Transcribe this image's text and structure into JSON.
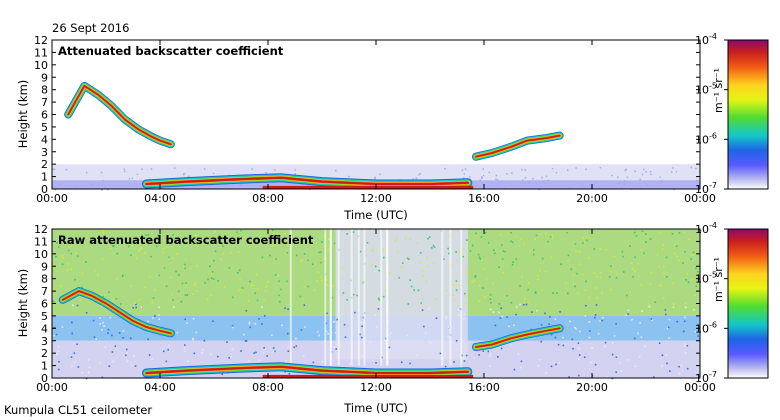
{
  "figure": {
    "date": "26 Sept 2016",
    "footer": "Kumpula CL51 ceilometer"
  },
  "colorbar": {
    "unit": "m⁻¹ sr⁻¹",
    "ticks": [
      {
        "base": "10",
        "exp": "-4"
      },
      {
        "base": "10",
        "exp": "-5"
      },
      {
        "base": "10",
        "exp": "-6"
      },
      {
        "base": "10",
        "exp": "-7"
      }
    ],
    "colors": [
      "#8a0a6e",
      "#c81e1e",
      "#f05a14",
      "#ffd21e",
      "#e6f514",
      "#50dc32",
      "#14c8c8",
      "#1e64e6",
      "#5a5aff",
      "#b4b4f0",
      "#ffffff"
    ]
  },
  "chart_data": [
    {
      "type": "heatmap",
      "title": "Attenuated backscatter coefficient",
      "xlabel": "Time (UTC)",
      "ylabel": "Height (km)",
      "xticks": [
        "00:00",
        "04:00",
        "08:00",
        "12:00",
        "16:00",
        "20:00",
        "00:00"
      ],
      "yticks": [
        "0",
        "1",
        "2",
        "3",
        "4",
        "5",
        "6",
        "7",
        "8",
        "9",
        "10",
        "11",
        "12"
      ],
      "xlim_hours": [
        0,
        24
      ],
      "ylim_km": [
        0,
        12
      ],
      "color_scale": "log",
      "color_range": [
        1e-07,
        0.0001
      ],
      "background": "clean",
      "features": [
        {
          "name": "elevated-cloud-layer",
          "x": [
            0.6,
            1.2,
            1.7,
            2.2,
            2.7,
            3.2,
            3.7,
            4.0,
            4.4
          ],
          "y": [
            6.0,
            8.3,
            7.6,
            6.7,
            5.6,
            4.8,
            4.2,
            3.9,
            3.6
          ]
        },
        {
          "name": "boundary-layer",
          "x": [
            3.5,
            5.0,
            7.0,
            8.5,
            10.0,
            12.0,
            14.0,
            15.4
          ],
          "y": [
            0.4,
            0.6,
            0.8,
            0.9,
            0.6,
            0.4,
            0.4,
            0.5
          ]
        },
        {
          "name": "evening-cloud",
          "x": [
            15.7,
            16.3,
            17.0,
            17.6,
            18.3,
            18.8
          ],
          "y": [
            2.6,
            2.9,
            3.4,
            3.9,
            4.1,
            4.3
          ]
        }
      ]
    },
    {
      "type": "heatmap",
      "title": "Raw attenuated backscatter coefficient",
      "xlabel": "Time (UTC)",
      "ylabel": "Height (km)",
      "xticks": [
        "00:00",
        "04:00",
        "08:00",
        "12:00",
        "16:00",
        "20:00",
        "00:00"
      ],
      "yticks": [
        "0",
        "1",
        "2",
        "3",
        "4",
        "5",
        "6",
        "7",
        "8",
        "9",
        "10",
        "11",
        "12"
      ],
      "xlim_hours": [
        0,
        24
      ],
      "ylim_km": [
        0,
        12
      ],
      "color_scale": "log",
      "color_range": [
        1e-07,
        0.0001
      ],
      "background": "noisy",
      "features": [
        {
          "name": "elevated-cloud-layer",
          "x": [
            0.4,
            1.0,
            1.5,
            2.0,
            2.5,
            3.0,
            3.5,
            4.0,
            4.4
          ],
          "y": [
            6.3,
            7.0,
            6.6,
            6.0,
            5.3,
            4.6,
            4.1,
            3.8,
            3.6
          ]
        },
        {
          "name": "boundary-layer",
          "x": [
            3.5,
            5.0,
            7.0,
            8.5,
            10.0,
            12.0,
            14.0,
            15.4
          ],
          "y": [
            0.4,
            0.6,
            0.8,
            0.9,
            0.6,
            0.4,
            0.4,
            0.5
          ]
        },
        {
          "name": "evening-cloud",
          "x": [
            15.7,
            16.3,
            17.0,
            17.6,
            18.3,
            18.8
          ],
          "y": [
            2.5,
            2.7,
            3.2,
            3.5,
            3.8,
            4.0
          ]
        }
      ]
    }
  ]
}
